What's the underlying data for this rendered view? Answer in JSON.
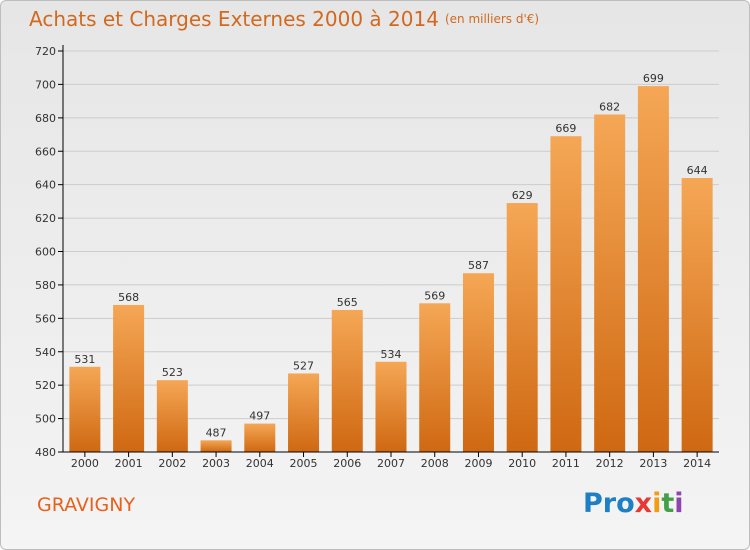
{
  "title": "Achats et Charges Externes 2000 à 2014",
  "title_unit": "(en milliers d'€)",
  "commune": "GRAVIGNY",
  "logo": {
    "p1": "Pro",
    "p2": "x",
    "p3": "i",
    "p4": "t",
    "p5": "i"
  },
  "colors": {
    "bar_top": "#f5a755",
    "bar_bottom": "#cf6812",
    "title": "#d2691e",
    "axis": "#000000",
    "grid": "#cccccc"
  },
  "chart_data": {
    "type": "bar",
    "categories": [
      "2000",
      "2001",
      "2002",
      "2003",
      "2004",
      "2005",
      "2006",
      "2007",
      "2008",
      "2009",
      "2010",
      "2011",
      "2012",
      "2013",
      "2014"
    ],
    "values": [
      531,
      568,
      523,
      487,
      497,
      527,
      565,
      534,
      569,
      587,
      629,
      669,
      682,
      699,
      644
    ],
    "title": "Achats et Charges Externes 2000 à 2014",
    "xlabel": "",
    "ylabel": "",
    "ylim": [
      480,
      720
    ],
    "yticks": [
      480,
      500,
      520,
      540,
      560,
      580,
      600,
      620,
      640,
      660,
      680,
      700,
      720
    ],
    "grid": true,
    "data_labels": true
  }
}
